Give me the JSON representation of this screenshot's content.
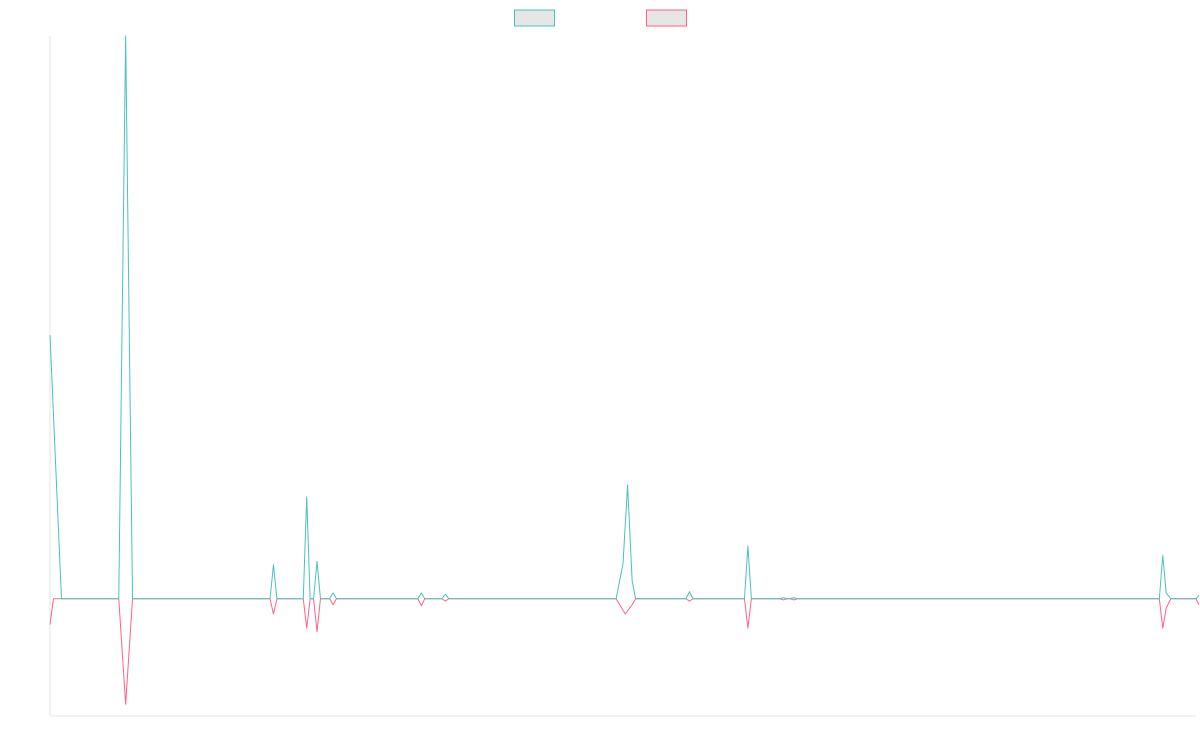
{
  "chart_data": {
    "type": "line",
    "title": "",
    "xlabel": "",
    "ylabel": "",
    "grid": false,
    "legend": {
      "placement": "top-center",
      "labels_visible": false
    },
    "x_count": 101,
    "ylim": [
      -100,
      480
    ],
    "series": [
      {
        "color": "#4bc0c0",
        "points": [
          [
            0,
            225
          ],
          [
            1,
            0
          ],
          [
            6,
            0
          ],
          [
            6.6,
            480
          ],
          [
            7.2,
            0
          ],
          [
            19.2,
            0
          ],
          [
            19.5,
            29
          ],
          [
            19.8,
            0
          ],
          [
            22.1,
            0
          ],
          [
            22.4,
            87
          ],
          [
            22.7,
            0
          ],
          [
            23,
            0
          ],
          [
            23.3,
            32
          ],
          [
            23.6,
            0
          ],
          [
            24.4,
            0
          ],
          [
            24.7,
            5
          ],
          [
            25,
            0
          ],
          [
            32.1,
            0
          ],
          [
            32.4,
            5
          ],
          [
            32.7,
            0
          ],
          [
            34.2,
            0
          ],
          [
            34.5,
            4
          ],
          [
            34.8,
            0
          ],
          [
            49.4,
            0
          ],
          [
            50,
            30
          ],
          [
            50.4,
            97
          ],
          [
            50.8,
            15
          ],
          [
            51.1,
            0
          ],
          [
            55.5,
            0
          ],
          [
            55.8,
            6
          ],
          [
            56.1,
            0
          ],
          [
            60.6,
            0
          ],
          [
            60.9,
            45
          ],
          [
            61.2,
            0
          ],
          [
            63.7,
            0
          ],
          [
            64,
            1
          ],
          [
            64.3,
            0
          ],
          [
            64.6,
            0
          ],
          [
            64.9,
            1
          ],
          [
            65.2,
            0
          ],
          [
            96.8,
            0
          ],
          [
            97.1,
            37
          ],
          [
            97.4,
            5
          ],
          [
            97.8,
            0
          ],
          [
            100,
            0
          ],
          [
            100.3,
            3
          ]
        ]
      },
      {
        "color": "#ff6384",
        "points": [
          [
            0,
            -22
          ],
          [
            0.3,
            0
          ],
          [
            6,
            0
          ],
          [
            6.6,
            -90
          ],
          [
            7.2,
            0
          ],
          [
            19.2,
            0
          ],
          [
            19.5,
            -13
          ],
          [
            19.8,
            0
          ],
          [
            22.1,
            0
          ],
          [
            22.4,
            -25
          ],
          [
            22.7,
            0
          ],
          [
            23,
            0
          ],
          [
            23.3,
            -28
          ],
          [
            23.6,
            0
          ],
          [
            24.4,
            0
          ],
          [
            24.7,
            -5
          ],
          [
            25,
            0
          ],
          [
            32.1,
            0
          ],
          [
            32.4,
            -6
          ],
          [
            32.7,
            0
          ],
          [
            34.2,
            0
          ],
          [
            34.5,
            -2
          ],
          [
            34.8,
            0
          ],
          [
            49.4,
            0
          ],
          [
            50.2,
            -13
          ],
          [
            50.8,
            -5
          ],
          [
            51.1,
            0
          ],
          [
            55.5,
            0
          ],
          [
            55.8,
            -2
          ],
          [
            56.1,
            0
          ],
          [
            60.6,
            0
          ],
          [
            60.9,
            -25
          ],
          [
            61.2,
            0
          ],
          [
            63.7,
            0
          ],
          [
            64,
            -1
          ],
          [
            64.3,
            0
          ],
          [
            64.6,
            0
          ],
          [
            64.9,
            -1
          ],
          [
            65.2,
            0
          ],
          [
            96.8,
            0
          ],
          [
            97.1,
            -25
          ],
          [
            97.4,
            -8
          ],
          [
            97.8,
            0
          ],
          [
            100,
            0
          ],
          [
            100.3,
            -5
          ]
        ]
      }
    ]
  }
}
